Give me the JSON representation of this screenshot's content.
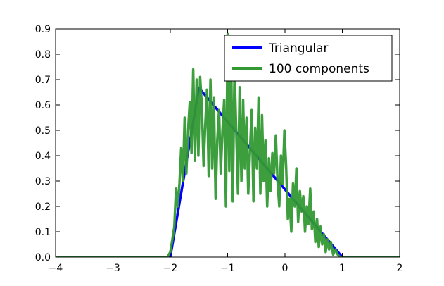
{
  "chart_data": {
    "type": "line",
    "title": "",
    "xlabel": "",
    "ylabel": "",
    "xlim": [
      -4,
      2
    ],
    "ylim": [
      0.0,
      0.9
    ],
    "x_ticks": [
      -4,
      -3,
      -2,
      -1,
      0,
      1,
      2
    ],
    "x_tick_labels": [
      "−4",
      "−3",
      "−2",
      "−1",
      "0",
      "1",
      "2"
    ],
    "y_ticks": [
      0.0,
      0.1,
      0.2,
      0.3,
      0.4,
      0.5,
      0.6,
      0.7,
      0.8,
      0.9
    ],
    "y_tick_labels": [
      "0.0",
      "0.1",
      "0.2",
      "0.3",
      "0.4",
      "0.5",
      "0.6",
      "0.7",
      "0.8",
      "0.9"
    ],
    "grid": false,
    "legend_position": "top-right",
    "series": [
      {
        "name": "Triangular",
        "color": "#0000ff",
        "x": [
          -4.0,
          -2.0,
          -1.5,
          1.0,
          2.0
        ],
        "y": [
          0.0,
          0.0,
          0.667,
          0.0,
          0.0
        ]
      },
      {
        "name": "100 components",
        "color": "#339933",
        "x": [
          -4.0,
          -2.05,
          -2.0,
          -1.97,
          -1.93,
          -1.9,
          -1.87,
          -1.84,
          -1.81,
          -1.78,
          -1.75,
          -1.72,
          -1.69,
          -1.66,
          -1.63,
          -1.6,
          -1.57,
          -1.54,
          -1.51,
          -1.48,
          -1.45,
          -1.42,
          -1.39,
          -1.36,
          -1.33,
          -1.3,
          -1.27,
          -1.24,
          -1.21,
          -1.18,
          -1.15,
          -1.12,
          -1.09,
          -1.06,
          -1.03,
          -1.0,
          -0.97,
          -0.94,
          -0.91,
          -0.88,
          -0.85,
          -0.82,
          -0.79,
          -0.76,
          -0.73,
          -0.7,
          -0.67,
          -0.64,
          -0.61,
          -0.58,
          -0.55,
          -0.52,
          -0.49,
          -0.46,
          -0.43,
          -0.4,
          -0.37,
          -0.34,
          -0.31,
          -0.28,
          -0.25,
          -0.22,
          -0.19,
          -0.16,
          -0.13,
          -0.1,
          -0.07,
          -0.04,
          -0.01,
          0.02,
          0.05,
          0.08,
          0.11,
          0.14,
          0.17,
          0.2,
          0.23,
          0.26,
          0.29,
          0.32,
          0.35,
          0.38,
          0.41,
          0.44,
          0.47,
          0.5,
          0.53,
          0.56,
          0.59,
          0.62,
          0.65,
          0.68,
          0.71,
          0.74,
          0.77,
          0.8,
          0.84,
          0.88,
          0.92,
          0.96,
          1.0,
          1.05,
          2.0
        ],
        "y": [
          0.0,
          0.0,
          0.02,
          0.06,
          0.12,
          0.27,
          0.2,
          0.29,
          0.43,
          0.3,
          0.55,
          0.33,
          0.5,
          0.61,
          0.41,
          0.74,
          0.38,
          0.7,
          0.4,
          0.71,
          0.6,
          0.36,
          0.52,
          0.66,
          0.32,
          0.7,
          0.35,
          0.63,
          0.23,
          0.46,
          0.58,
          0.33,
          0.5,
          0.62,
          0.2,
          0.88,
          0.34,
          0.8,
          0.22,
          0.74,
          0.5,
          0.25,
          0.67,
          0.3,
          0.62,
          0.35,
          0.55,
          0.25,
          0.42,
          0.58,
          0.22,
          0.51,
          0.35,
          0.63,
          0.25,
          0.56,
          0.3,
          0.46,
          0.2,
          0.39,
          0.26,
          0.41,
          0.33,
          0.48,
          0.3,
          0.2,
          0.4,
          0.29,
          0.5,
          0.36,
          0.15,
          0.23,
          0.1,
          0.29,
          0.2,
          0.35,
          0.14,
          0.26,
          0.18,
          0.24,
          0.1,
          0.2,
          0.13,
          0.27,
          0.11,
          0.18,
          0.06,
          0.15,
          0.04,
          0.12,
          0.05,
          0.09,
          0.02,
          0.07,
          0.03,
          0.06,
          0.01,
          0.03,
          0.01,
          0.0,
          0.0,
          0.0,
          0.0
        ]
      }
    ]
  }
}
